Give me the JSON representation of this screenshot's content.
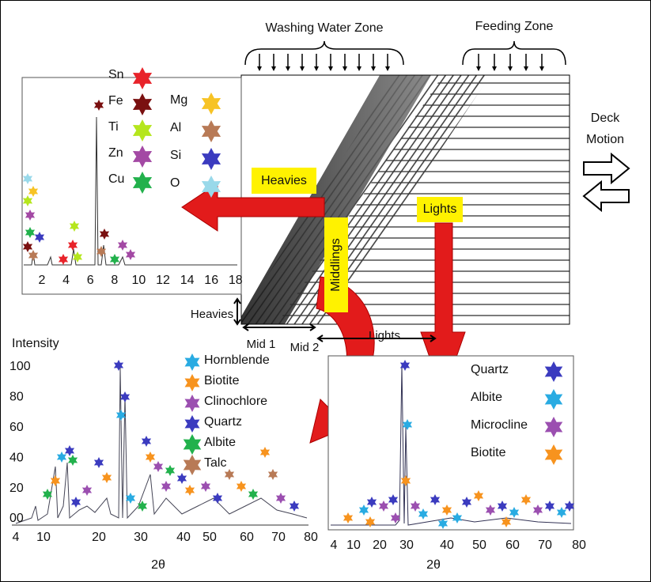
{
  "zones": {
    "washing": "Washing Water Zone",
    "feeding": "Feeding Zone"
  },
  "deck_motion": [
    "Deck",
    "Motion"
  ],
  "arrows": {
    "heavies": "Heavies",
    "lights": "Lights",
    "middlings": "Middlings"
  },
  "bottom_labels": {
    "heavies": "Heavies",
    "mid1": "Mid 1",
    "mid2": "Mid 2",
    "lights": "Lights"
  },
  "heavies_panel": {
    "legend": [
      {
        "name": "Sn",
        "color": "#e8232a"
      },
      {
        "name": "Fe",
        "color": "#7a1010"
      },
      {
        "name": "Ti",
        "color": "#b5e61d"
      },
      {
        "name": "Zn",
        "color": "#a349a4"
      },
      {
        "name": "Cu",
        "color": "#22b14c"
      },
      {
        "name": "Mg",
        "color": "#f7c325"
      },
      {
        "name": "Al",
        "color": "#b87a56"
      },
      {
        "name": "Si",
        "color": "#3b3bbf"
      },
      {
        "name": "O",
        "color": "#99d9ea"
      }
    ],
    "x_ticks": [
      "2",
      "4",
      "6",
      "8",
      "10",
      "12",
      "14",
      "16",
      "18"
    ]
  },
  "middlings_panel": {
    "y_title": "Intensity",
    "y_ticks": [
      "100",
      "80",
      "60",
      "40",
      "20",
      "00"
    ],
    "x_ticks": [
      "4",
      "10",
      "20",
      "30",
      "40",
      "50",
      "60",
      "70",
      "80"
    ],
    "x_title": "2θ",
    "legend": [
      {
        "name": "Hornblende",
        "color": "#29abe2"
      },
      {
        "name": "Biotite",
        "color": "#f7931e"
      },
      {
        "name": "Clinochlore",
        "color": "#9b4fb0"
      },
      {
        "name": "Quartz",
        "color": "#3b3bbf"
      },
      {
        "name": "Albite",
        "color": "#22b14c"
      },
      {
        "name": "Talc",
        "color": "#b87a56"
      }
    ]
  },
  "lights_panel": {
    "x_ticks": [
      "4",
      "10",
      "20",
      "30",
      "40",
      "50",
      "60",
      "70",
      "80"
    ],
    "x_title": "2θ",
    "legend": [
      {
        "name": "Quartz",
        "color": "#3b3bbf"
      },
      {
        "name": "Albite",
        "color": "#29abe2"
      },
      {
        "name": "Microcline",
        "color": "#9b4fb0"
      },
      {
        "name": "Biotite",
        "color": "#f7931e"
      }
    ]
  }
}
